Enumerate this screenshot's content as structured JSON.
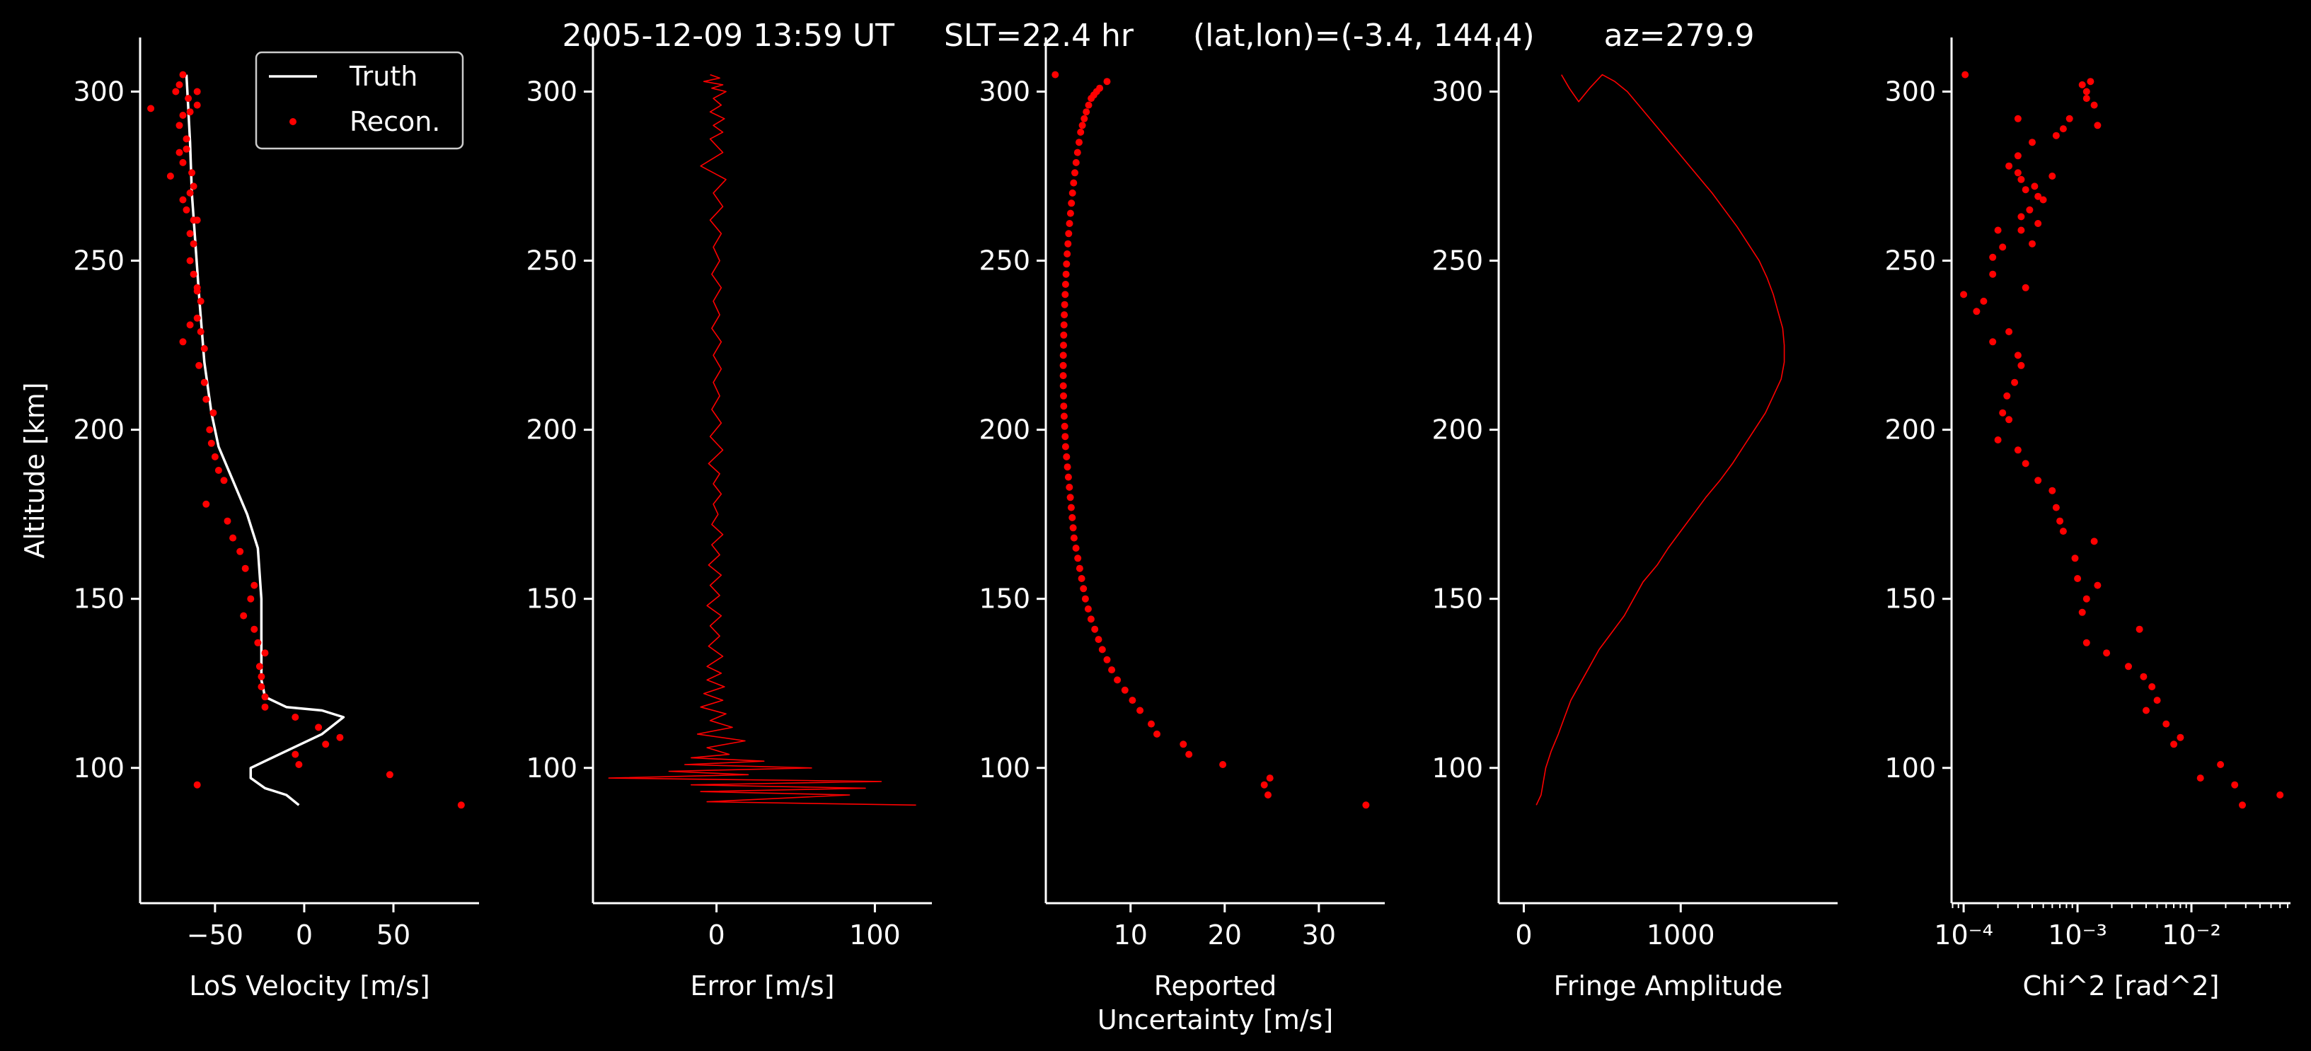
{
  "title": "2005-12-09 13:59 UT     SLT=22.4 hr      (lat,lon)=(-3.4, 144.4)       az=279.9",
  "colors": {
    "background": "#000000",
    "foreground": "#ffffff",
    "recon": "#ff0000",
    "truth": "#ffffff"
  },
  "chart_data": [
    {
      "type": "line",
      "name": "los-velocity",
      "xlabel": "LoS Velocity [m/s]",
      "ylabel": "Altitude [km]",
      "xlim": [
        -92,
        98
      ],
      "ylim": [
        60,
        316
      ],
      "xticks": [
        -50,
        0,
        50
      ],
      "xtick_labels": [
        "−50",
        "0",
        "50"
      ],
      "yticks": [
        100,
        150,
        200,
        250,
        300
      ],
      "ytick_labels": [
        "100",
        "150",
        "200",
        "250",
        "300"
      ],
      "legend": {
        "placement": "top-right",
        "entries": [
          "Truth",
          "Recon."
        ]
      },
      "series": [
        {
          "name": "Truth",
          "style": "line",
          "x": [
            -3,
            -10,
            -22,
            -30,
            -30,
            -10,
            10,
            22,
            10,
            -10,
            -22,
            -24,
            -24,
            -24,
            -26,
            -32,
            -40,
            -48,
            -52,
            -56,
            -59,
            -61,
            -63,
            -64,
            -65,
            -66
          ],
          "y": [
            89,
            92,
            94,
            97,
            100,
            105,
            110,
            115,
            117,
            118,
            121,
            126,
            135,
            150,
            165,
            175,
            185,
            195,
            205,
            220,
            240,
            255,
            270,
            285,
            295,
            305
          ]
        },
        {
          "name": "Recon.",
          "style": "points",
          "x": [
            88,
            -60,
            48,
            -3,
            -5,
            12,
            20,
            8,
            -5,
            -22,
            -22,
            -24,
            -24,
            -25,
            -22,
            -26,
            -28,
            -34,
            -30,
            -28,
            -33,
            -36,
            -40,
            -43,
            -55,
            -45,
            -48,
            -50,
            -52,
            -53,
            -51,
            -55,
            -56,
            -59,
            -56,
            -58,
            -60,
            -58,
            -60,
            -62,
            -64,
            -62,
            -64,
            -60,
            -66,
            -68,
            -62,
            -63,
            -68,
            -70,
            -66,
            -70,
            -68,
            -64,
            -60,
            -65,
            -72,
            -70,
            -68,
            -64,
            -66,
            -75,
            -62,
            -60,
            -64,
            -68,
            -86,
            -60
          ],
          "y": [
            89,
            95,
            98,
            101,
            104,
            107,
            109,
            112,
            115,
            118,
            121,
            124,
            127,
            130,
            134,
            137,
            141,
            145,
            150,
            154,
            159,
            164,
            168,
            173,
            178,
            185,
            188,
            192,
            196,
            200,
            205,
            209,
            214,
            219,
            224,
            229,
            233,
            238,
            242,
            246,
            250,
            255,
            258,
            262,
            265,
            268,
            272,
            276,
            279,
            282,
            286,
            290,
            293,
            294,
            296,
            298,
            300,
            302,
            305,
            270,
            283,
            275,
            262,
            241,
            231,
            226,
            295,
            300
          ]
        }
      ]
    },
    {
      "type": "line",
      "name": "error",
      "xlabel": "Error [m/s]",
      "xlim": [
        -78,
        136
      ],
      "ylim": [
        60,
        316
      ],
      "xticks": [
        0,
        100
      ],
      "xtick_labels": [
        "0",
        "100"
      ],
      "yticks": [
        100,
        150,
        200,
        250,
        300
      ],
      "ytick_labels": [
        "100",
        "150",
        "200",
        "250",
        "300"
      ],
      "series": [
        {
          "name": "Error",
          "style": "line",
          "x": [
            126,
            -6,
            84,
            -10,
            94,
            -16,
            104,
            -68,
            20,
            -30,
            60,
            -20,
            30,
            -16,
            8,
            -6,
            18,
            -12,
            10,
            -4,
            6,
            -10,
            4,
            -8,
            5,
            -6,
            3,
            -6,
            4,
            -5,
            2,
            -4,
            3,
            -6,
            2,
            -4,
            3,
            -5,
            2,
            -3,
            4,
            -3,
            1,
            -2,
            3,
            -2,
            2,
            -5,
            4,
            -4,
            3,
            -3,
            2,
            -2,
            3,
            -2,
            3,
            -3,
            2,
            -2,
            3,
            -3,
            2,
            -2,
            3,
            -4,
            4,
            -2,
            6,
            -10,
            4,
            -4,
            4,
            -2,
            5,
            -4,
            3,
            -2,
            6,
            -3,
            4,
            -8,
            2,
            -4
          ],
          "y": [
            89,
            90,
            92,
            93,
            94,
            95,
            96,
            97,
            98,
            99,
            100,
            101,
            102,
            103,
            104,
            106,
            108,
            110,
            112,
            114,
            116,
            118,
            120,
            122,
            124,
            126,
            128,
            130,
            133,
            136,
            139,
            142,
            145,
            148,
            151,
            154,
            157,
            160,
            163,
            166,
            169,
            172,
            175,
            178,
            181,
            184,
            187,
            190,
            194,
            198,
            202,
            206,
            210,
            214,
            218,
            222,
            226,
            230,
            234,
            238,
            242,
            246,
            250,
            254,
            258,
            262,
            266,
            270,
            274,
            278,
            282,
            286,
            288,
            290,
            292,
            294,
            296,
            298,
            300,
            301,
            302,
            303,
            304,
            305
          ]
        }
      ]
    },
    {
      "type": "scatter",
      "name": "reported-uncertainty",
      "xlabel": "Reported\nUncertainty [m/s]",
      "xlim": [
        1,
        37
      ],
      "ylim": [
        60,
        316
      ],
      "xticks": [
        10,
        20,
        30
      ],
      "xtick_labels": [
        "10",
        "20",
        "30"
      ],
      "yticks": [
        100,
        150,
        200,
        250,
        300
      ],
      "ytick_labels": [
        "100",
        "150",
        "200",
        "250",
        "300"
      ],
      "series": [
        {
          "name": "Reported Uncertainty",
          "style": "points",
          "x": [
            35,
            24.6,
            24.2,
            24.8,
            19.8,
            16.2,
            15.6,
            12.8,
            12.2,
            11,
            10.2,
            9.4,
            8.6,
            8,
            7.5,
            7,
            6.6,
            6.2,
            5.8,
            5.5,
            5.2,
            5,
            4.8,
            4.6,
            4.4,
            4.2,
            4,
            3.9,
            3.8,
            3.7,
            3.6,
            3.5,
            3.4,
            3.3,
            3.2,
            3.1,
            3.05,
            3,
            2.95,
            2.9,
            2.88,
            2.86,
            2.85,
            2.85,
            2.86,
            2.88,
            2.9,
            2.93,
            2.96,
            3,
            3.05,
            3.1,
            3.15,
            3.2,
            3.27,
            3.35,
            3.43,
            3.52,
            3.62,
            3.72,
            3.83,
            3.95,
            4.08,
            4.22,
            4.37,
            4.53,
            4.7,
            4.88,
            5.08,
            5.3,
            5.55,
            5.82,
            6.1,
            6.4,
            6.72,
            7.5,
            2
          ],
          "y": [
            89,
            92,
            95,
            97,
            101,
            104,
            107,
            110,
            113,
            117,
            120,
            123,
            126,
            129,
            132,
            135,
            138,
            141,
            144,
            147,
            150,
            153,
            156,
            159,
            162,
            165,
            168,
            171,
            174,
            177,
            180,
            183,
            186,
            189,
            192,
            195,
            198,
            201,
            204,
            207,
            210,
            213,
            216,
            219,
            222,
            225,
            228,
            231,
            234,
            237,
            240,
            243,
            246,
            249,
            252,
            255,
            258,
            261,
            264,
            267,
            270,
            273,
            276,
            279,
            282,
            285,
            288,
            290,
            292,
            294,
            296,
            298,
            299,
            300,
            301,
            303,
            305
          ]
        }
      ]
    },
    {
      "type": "line",
      "name": "fringe-amplitude",
      "xlabel": "Fringe Amplitude",
      "xlim": [
        -160,
        2000
      ],
      "ylim": [
        60,
        316
      ],
      "xticks": [
        0,
        1000
      ],
      "xtick_labels": [
        "0",
        "1000"
      ],
      "yticks": [
        100,
        150,
        200,
        250,
        300
      ],
      "ytick_labels": [
        "100",
        "150",
        "200",
        "250",
        "300"
      ],
      "series": [
        {
          "name": "Fringe Amplitude",
          "style": "line",
          "x": [
            80,
            110,
            125,
            140,
            175,
            220,
            260,
            300,
            360,
            420,
            480,
            560,
            640,
            700,
            760,
            850,
            920,
            1000,
            1080,
            1160,
            1250,
            1330,
            1400,
            1470,
            1540,
            1590,
            1640,
            1660,
            1660,
            1650,
            1620,
            1590,
            1550,
            1500,
            1430,
            1360,
            1280,
            1200,
            1110,
            1020,
            930,
            840,
            750,
            660,
            580,
            500,
            420,
            350,
            290,
            240
          ],
          "y": [
            89,
            92,
            96,
            100,
            105,
            110,
            115,
            120,
            125,
            130,
            135,
            140,
            145,
            150,
            155,
            160,
            165,
            170,
            175,
            180,
            185,
            190,
            195,
            200,
            205,
            210,
            215,
            220,
            225,
            230,
            235,
            240,
            245,
            250,
            255,
            260,
            265,
            270,
            275,
            280,
            285,
            290,
            295,
            300,
            303,
            305,
            301,
            297,
            301,
            305
          ]
        }
      ]
    },
    {
      "type": "scatter",
      "name": "chi-squared",
      "xlabel": "Chi^2 [rad^2]",
      "xscale": "log",
      "xlim": [
        7.83e-05,
        0.0741
      ],
      "ylim": [
        60,
        316
      ],
      "xticks": [
        0.0001,
        0.001,
        0.01
      ],
      "xtick_labels": [
        "10⁻⁴",
        "10⁻³",
        "10⁻²"
      ],
      "yticks": [
        100,
        150,
        200,
        250,
        300
      ],
      "ytick_labels": [
        "100",
        "150",
        "200",
        "250",
        "300"
      ],
      "series": [
        {
          "name": "Chi^2",
          "style": "points",
          "x": [
            0.06,
            0.028,
            0.024,
            0.012,
            0.018,
            0.007,
            0.008,
            0.006,
            0.004,
            0.005,
            0.0045,
            0.0038,
            0.0028,
            0.0018,
            0.0012,
            0.0035,
            0.0015,
            0.0012,
            0.0011,
            0.001,
            0.00095,
            0.0014,
            0.00075,
            0.0007,
            0.00065,
            0.0006,
            0.00045,
            0.00035,
            0.0003,
            0.0002,
            0.00025,
            0.00022,
            0.00024,
            0.00028,
            0.00032,
            0.0003,
            0.00018,
            0.00025,
            0.00013,
            0.00015,
            0.0001,
            0.00018,
            0.00035,
            0.00032,
            0.00032,
            0.00038,
            0.00045,
            0.00042,
            0.00032,
            0.0003,
            0.00025,
            0.00018,
            0.00022,
            0.0002,
            0.0004,
            0.00045,
            0.0005,
            0.0006,
            0.00035,
            0.0003,
            0.0004,
            0.00065,
            0.00075,
            0.00085,
            0.0012,
            0.0014,
            0.0011,
            0.0015,
            0.0012,
            0.0013,
            0.0003,
            0.000103
          ],
          "y": [
            92,
            89,
            95,
            97,
            101,
            107,
            109,
            113,
            117,
            120,
            124,
            127,
            130,
            134,
            137,
            141,
            154,
            150,
            146,
            156,
            162,
            167,
            170,
            173,
            177,
            182,
            185,
            190,
            194,
            197,
            203,
            205,
            210,
            214,
            219,
            222,
            226,
            229,
            235,
            238,
            240,
            246,
            242,
            259,
            263,
            265,
            269,
            272,
            274,
            276,
            278,
            251,
            254,
            259,
            255,
            261,
            268,
            275,
            271,
            281,
            285,
            287,
            289,
            292,
            298,
            296,
            302,
            290,
            300,
            303,
            292,
            305
          ]
        }
      ]
    }
  ]
}
